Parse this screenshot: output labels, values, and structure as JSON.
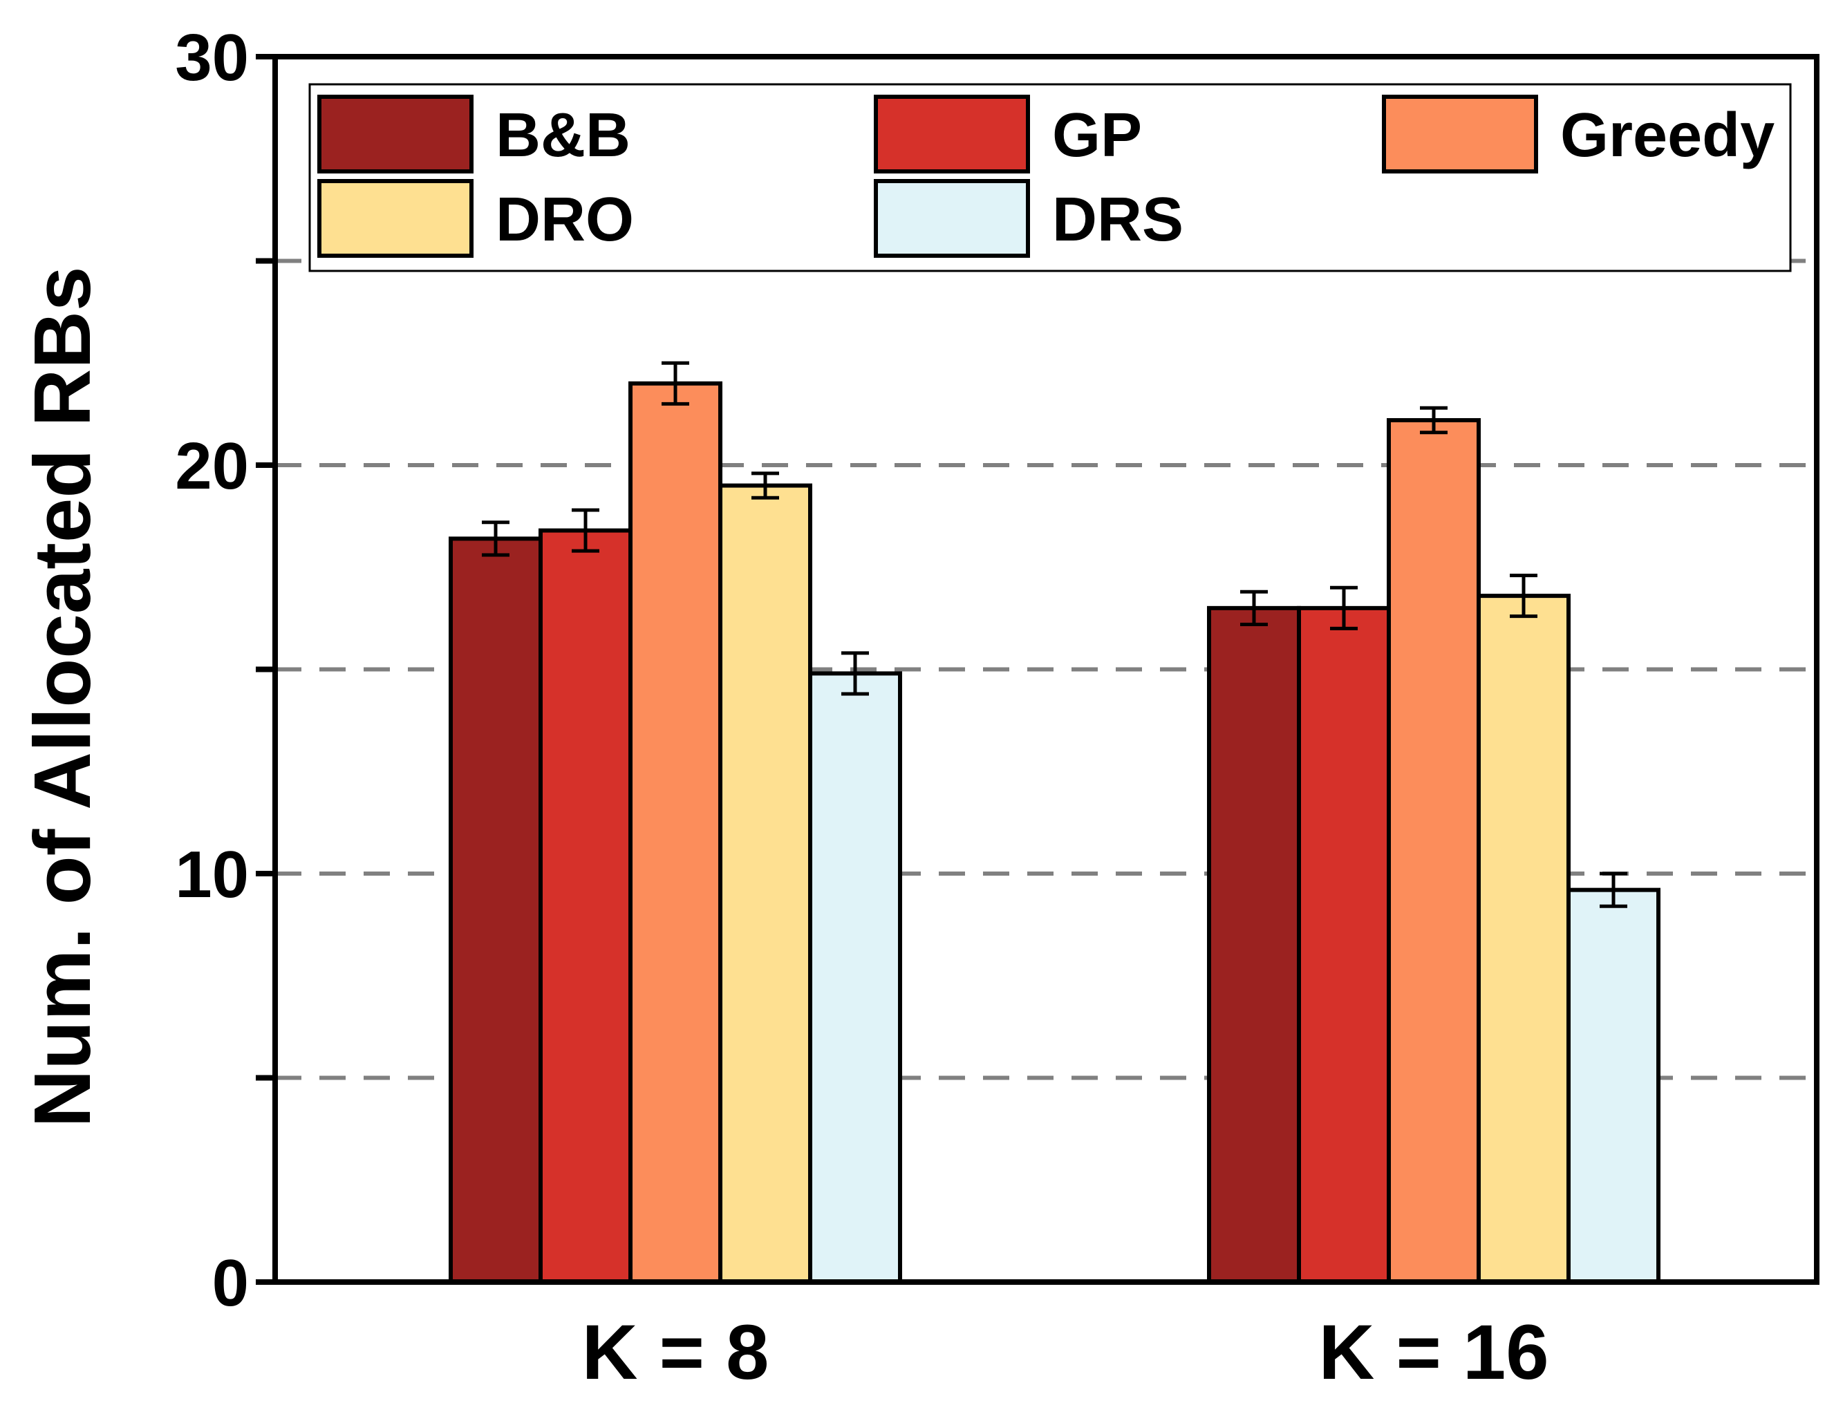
{
  "chart_data": {
    "type": "bar",
    "title": "",
    "xlabel": "",
    "ylabel": "Num. of Allocated RBs",
    "ylim": [
      0,
      30
    ],
    "yticks": [
      0,
      5,
      10,
      15,
      20,
      25,
      30
    ],
    "ytick_labels": [
      "0",
      "",
      "10",
      "",
      "20",
      "",
      "30"
    ],
    "grid": "horizontal dashed at 5, 10, 15, 20, 25",
    "legend_position": "top, inside plot, 3 columns",
    "categories": [
      "K = 8",
      "K = 16"
    ],
    "series": [
      {
        "name": "B&B",
        "color": "#9b2220",
        "values": [
          18.2,
          16.5
        ],
        "errors": [
          0.4,
          0.4
        ]
      },
      {
        "name": "GP",
        "color": "#d6312a",
        "values": [
          18.4,
          16.5
        ],
        "errors": [
          0.5,
          0.5
        ]
      },
      {
        "name": "Greedy",
        "color": "#fc8d5b",
        "values": [
          22.0,
          21.1
        ],
        "errors": [
          0.5,
          0.3
        ]
      },
      {
        "name": "DRO",
        "color": "#fee091",
        "values": [
          19.5,
          16.8
        ],
        "errors": [
          0.3,
          0.5
        ]
      },
      {
        "name": "DRS",
        "color": "#e0f3f8",
        "values": [
          14.9,
          9.6
        ],
        "errors": [
          0.5,
          0.4
        ]
      }
    ]
  }
}
